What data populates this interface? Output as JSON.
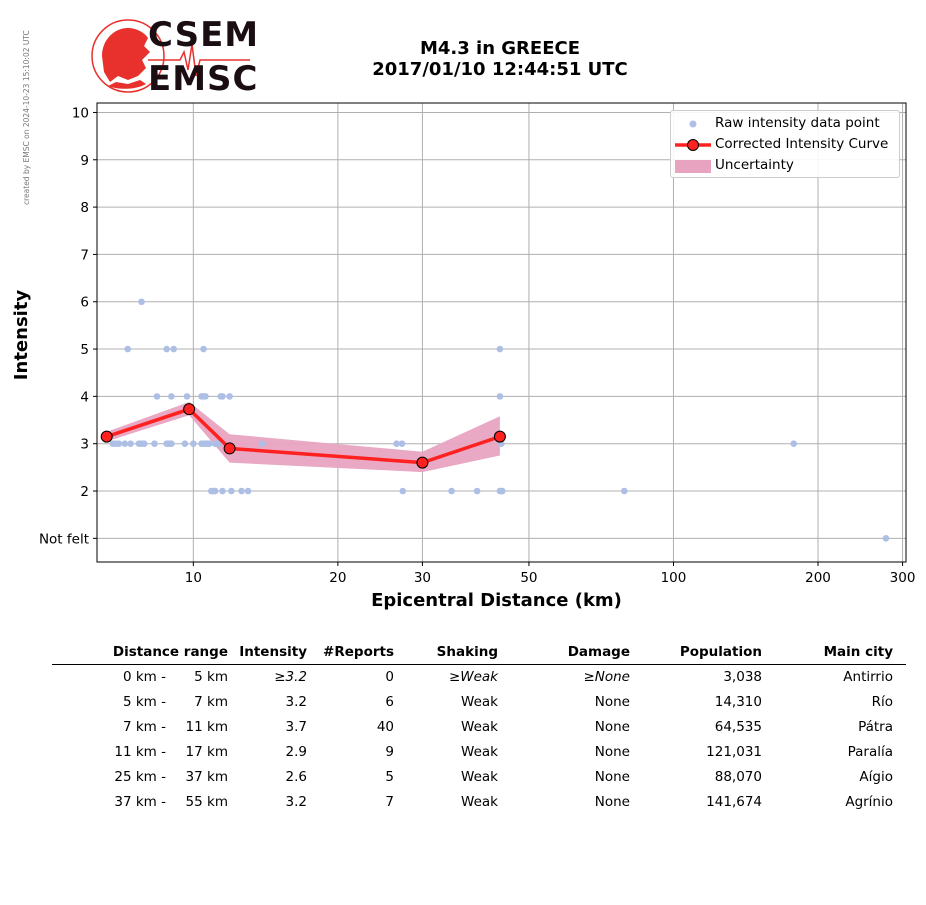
{
  "credit": "created by EMSC on 2024-10-23 15:10:02 UTC",
  "logo": {
    "top": "CSEM",
    "bottom": "EMSC"
  },
  "title": {
    "line1": "M4.3 in GREECE",
    "line2": "2017/01/10 12:44:51 UTC"
  },
  "colors": {
    "raw": "#aebfe6",
    "curve": "#ff2020",
    "uncertainty": "#e8a3c0",
    "grid": "#b0b0b0"
  },
  "chart_data": {
    "type": "scatter",
    "xlabel": "Epicentral Distance (km)",
    "ylabel": "Intensity",
    "xscale": "log",
    "xlim": [
      6.3,
      305
    ],
    "ylim": [
      0.5,
      10.2
    ],
    "xticks": [
      10,
      20,
      30,
      50,
      100,
      200,
      300
    ],
    "xtick_labels": [
      "10",
      "20",
      "30",
      "50",
      "100",
      "200",
      "300"
    ],
    "yticks": [
      1,
      2,
      3,
      4,
      5,
      6,
      7,
      8,
      9,
      10
    ],
    "ytick_labels": [
      "Not felt",
      "2",
      "3",
      "4",
      "5",
      "6",
      "7",
      "8",
      "9",
      "10"
    ],
    "grid": true,
    "legend_position": "top-right",
    "legend": [
      "Raw intensity data point",
      "Corrected Intensity Curve",
      "Uncertainty"
    ],
    "raw_points": [
      [
        6.8,
        3
      ],
      [
        6.9,
        3
      ],
      [
        7.0,
        3
      ],
      [
        7.2,
        3
      ],
      [
        7.4,
        3
      ],
      [
        7.7,
        3
      ],
      [
        7.8,
        3
      ],
      [
        7.9,
        3
      ],
      [
        8.3,
        3
      ],
      [
        8.8,
        3
      ],
      [
        8.9,
        3
      ],
      [
        9.0,
        3
      ],
      [
        9.6,
        3
      ],
      [
        10.0,
        3
      ],
      [
        10.4,
        3
      ],
      [
        10.5,
        3
      ],
      [
        10.6,
        3
      ],
      [
        10.7,
        3
      ],
      [
        10.8,
        3
      ],
      [
        11.1,
        3
      ],
      [
        11.3,
        3
      ],
      [
        13.9,
        3
      ],
      [
        7.3,
        5
      ],
      [
        8.8,
        5
      ],
      [
        9.1,
        5
      ],
      [
        10.5,
        5
      ],
      [
        7.8,
        6
      ],
      [
        8.4,
        4
      ],
      [
        9.0,
        4
      ],
      [
        9.7,
        4
      ],
      [
        10.4,
        4
      ],
      [
        10.5,
        4
      ],
      [
        10.6,
        4
      ],
      [
        11.4,
        4
      ],
      [
        11.5,
        4
      ],
      [
        11.9,
        4
      ],
      [
        10.9,
        2
      ],
      [
        11.0,
        2
      ],
      [
        11.1,
        2
      ],
      [
        11.5,
        2
      ],
      [
        12.0,
        2
      ],
      [
        12.6,
        2
      ],
      [
        13.0,
        2
      ],
      [
        26.5,
        3
      ],
      [
        27.2,
        3
      ],
      [
        27.3,
        2
      ],
      [
        34.5,
        2
      ],
      [
        39.0,
        2
      ],
      [
        43.5,
        2
      ],
      [
        43.8,
        2
      ],
      [
        44.0,
        2
      ],
      [
        43.5,
        4
      ],
      [
        43.5,
        5
      ],
      [
        43.8,
        3
      ],
      [
        79.0,
        2
      ],
      [
        178.0,
        3
      ],
      [
        277.0,
        1
      ]
    ],
    "curve": {
      "x": [
        6.6,
        9.8,
        11.9,
        30.0,
        43.5
      ],
      "y": [
        3.15,
        3.73,
        2.9,
        2.6,
        3.15
      ]
    },
    "uncertainty": {
      "x": [
        6.6,
        9.8,
        11.9,
        30.0,
        43.5
      ],
      "low": [
        3.05,
        3.6,
        2.6,
        2.4,
        2.75
      ],
      "high": [
        3.25,
        3.88,
        3.2,
        2.83,
        3.58
      ]
    }
  },
  "table": {
    "headers": {
      "distance": "Distance range",
      "intensity": "Intensity",
      "reports": "#Reports",
      "shaking": "Shaking",
      "damage": "Damage",
      "population": "Population",
      "city": "Main city"
    },
    "rows": [
      {
        "dmin": "0 km -",
        "dmax": "5 km",
        "intensity": "≥3.2",
        "reports": "0",
        "shaking": "≥Weak",
        "damage": "≥None",
        "population": "3,038",
        "city": "Antirrio"
      },
      {
        "dmin": "5 km -",
        "dmax": "7 km",
        "intensity": "3.2",
        "reports": "6",
        "shaking": "Weak",
        "damage": "None",
        "population": "14,310",
        "city": "Río"
      },
      {
        "dmin": "7 km -",
        "dmax": "11 km",
        "intensity": "3.7",
        "reports": "40",
        "shaking": "Weak",
        "damage": "None",
        "population": "64,535",
        "city": "Pátra"
      },
      {
        "dmin": "11 km -",
        "dmax": "17 km",
        "intensity": "2.9",
        "reports": "9",
        "shaking": "Weak",
        "damage": "None",
        "population": "121,031",
        "city": "Paralía"
      },
      {
        "dmin": "25 km -",
        "dmax": "37 km",
        "intensity": "2.6",
        "reports": "5",
        "shaking": "Weak",
        "damage": "None",
        "population": "88,070",
        "city": "Aígio"
      },
      {
        "dmin": "37 km -",
        "dmax": "55 km",
        "intensity": "3.2",
        "reports": "7",
        "shaking": "Weak",
        "damage": "None",
        "population": "141,674",
        "city": "Agrínio"
      }
    ]
  }
}
